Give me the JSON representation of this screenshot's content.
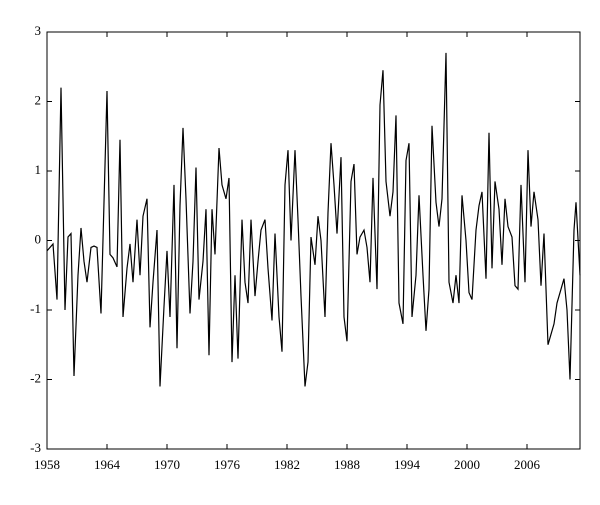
{
  "chart_data": {
    "type": "line",
    "x": [
      1958.0,
      1958.6,
      1959.0,
      1959.4,
      1959.8,
      1960.1,
      1960.4,
      1960.7,
      1961.1,
      1961.4,
      1961.7,
      1962.0,
      1962.4,
      1962.7,
      1963.0,
      1963.4,
      1964.0,
      1964.3,
      1964.6,
      1965.0,
      1965.3,
      1965.6,
      1966.0,
      1966.3,
      1966.6,
      1967.0,
      1967.3,
      1967.6,
      1968.0,
      1968.3,
      1968.6,
      1969.0,
      1969.3,
      1969.7,
      1970.0,
      1970.3,
      1970.7,
      1971.0,
      1971.3,
      1971.6,
      1971.9,
      1972.3,
      1972.6,
      1972.9,
      1973.2,
      1973.6,
      1973.9,
      1974.2,
      1974.5,
      1974.8,
      1975.2,
      1975.5,
      1975.9,
      1976.2,
      1976.5,
      1976.8,
      1977.1,
      1977.5,
      1977.8,
      1978.1,
      1978.4,
      1978.8,
      1979.1,
      1979.4,
      1979.8,
      1980.1,
      1980.5,
      1980.8,
      1981.2,
      1981.5,
      1981.8,
      1982.1,
      1982.4,
      1982.8,
      1983.1,
      1983.4,
      1983.8,
      1984.1,
      1984.4,
      1984.8,
      1985.1,
      1985.4,
      1985.8,
      1986.1,
      1986.4,
      1986.7,
      1987.0,
      1987.4,
      1987.7,
      1988.0,
      1988.4,
      1988.7,
      1989.0,
      1989.3,
      1989.7,
      1990.0,
      1990.3,
      1990.6,
      1991.0,
      1991.3,
      1991.6,
      1991.9,
      1992.3,
      1992.6,
      1992.9,
      1993.2,
      1993.6,
      1993.9,
      1994.2,
      1994.5,
      1994.9,
      1995.2,
      1995.6,
      1995.9,
      1996.2,
      1996.5,
      1996.9,
      1997.2,
      1997.5,
      1997.9,
      1998.2,
      1998.6,
      1998.9,
      1999.2,
      1999.5,
      1999.9,
      2000.2,
      2000.5,
      2000.9,
      2001.2,
      2001.5,
      2001.9,
      2002.2,
      2002.5,
      2002.8,
      2003.2,
      2003.5,
      2003.8,
      2004.1,
      2004.5,
      2004.8,
      2005.1,
      2005.4,
      2005.8,
      2006.1,
      2006.4,
      2006.7,
      2007.1,
      2007.4,
      2007.7,
      2008.1,
      2008.4,
      2008.7,
      2009.0,
      2009.4,
      2009.7,
      2010.0,
      2010.3,
      2010.7,
      2010.9,
      2011.3
    ],
    "series": [
      {
        "color": "#000000",
        "values": [
          -0.15,
          -0.05,
          -0.85,
          2.2,
          -1.0,
          0.05,
          0.1,
          -1.95,
          -0.5,
          0.18,
          -0.3,
          -0.6,
          -0.1,
          -0.08,
          -0.1,
          -1.05,
          2.15,
          -0.2,
          -0.25,
          -0.38,
          1.45,
          -1.1,
          -0.4,
          -0.05,
          -0.6,
          0.3,
          -0.5,
          0.35,
          0.6,
          -1.25,
          -0.6,
          0.15,
          -2.1,
          -0.95,
          -0.15,
          -1.1,
          0.8,
          -1.55,
          0.5,
          1.62,
          0.6,
          -1.05,
          -0.3,
          1.05,
          -0.85,
          -0.3,
          0.45,
          -1.65,
          0.45,
          -0.2,
          1.33,
          0.8,
          0.6,
          0.9,
          -1.75,
          -0.5,
          -1.7,
          0.3,
          -0.6,
          -0.9,
          0.3,
          -0.8,
          -0.3,
          0.15,
          0.3,
          -0.4,
          -1.15,
          0.1,
          -1.1,
          -1.6,
          0.8,
          1.3,
          0.0,
          1.3,
          0.3,
          -0.8,
          -2.1,
          -1.75,
          0.05,
          -0.35,
          0.35,
          0.0,
          -1.1,
          0.4,
          1.4,
          0.8,
          0.1,
          1.2,
          -1.1,
          -1.45,
          0.85,
          1.1,
          -0.2,
          0.05,
          0.15,
          -0.1,
          -0.6,
          0.9,
          -0.7,
          1.95,
          2.45,
          0.85,
          0.35,
          0.7,
          1.8,
          -0.9,
          -1.2,
          1.15,
          1.4,
          -1.1,
          -0.5,
          0.65,
          -0.5,
          -1.3,
          -0.7,
          1.65,
          0.55,
          0.2,
          0.6,
          2.7,
          -0.6,
          -0.9,
          -0.5,
          -0.9,
          0.65,
          0.0,
          -0.75,
          -0.85,
          0.15,
          0.5,
          0.7,
          -0.55,
          1.55,
          -0.4,
          0.85,
          0.45,
          -0.35,
          0.6,
          0.2,
          0.05,
          -0.65,
          -0.7,
          0.8,
          -0.6,
          1.3,
          0.2,
          0.7,
          0.3,
          -0.65,
          0.1,
          -1.5,
          -1.35,
          -1.2,
          -0.9,
          -0.7,
          -0.55,
          -1.0,
          -2.0,
          0.15,
          0.55,
          -0.5
        ]
      }
    ],
    "xlim": [
      1958,
      2011.3
    ],
    "ylim": [
      -3,
      3
    ],
    "xticks": [
      1958,
      1964,
      1970,
      1976,
      1982,
      1988,
      1994,
      2000,
      2006
    ],
    "yticks": [
      -3,
      -2,
      -1,
      0,
      1,
      2,
      3
    ]
  }
}
